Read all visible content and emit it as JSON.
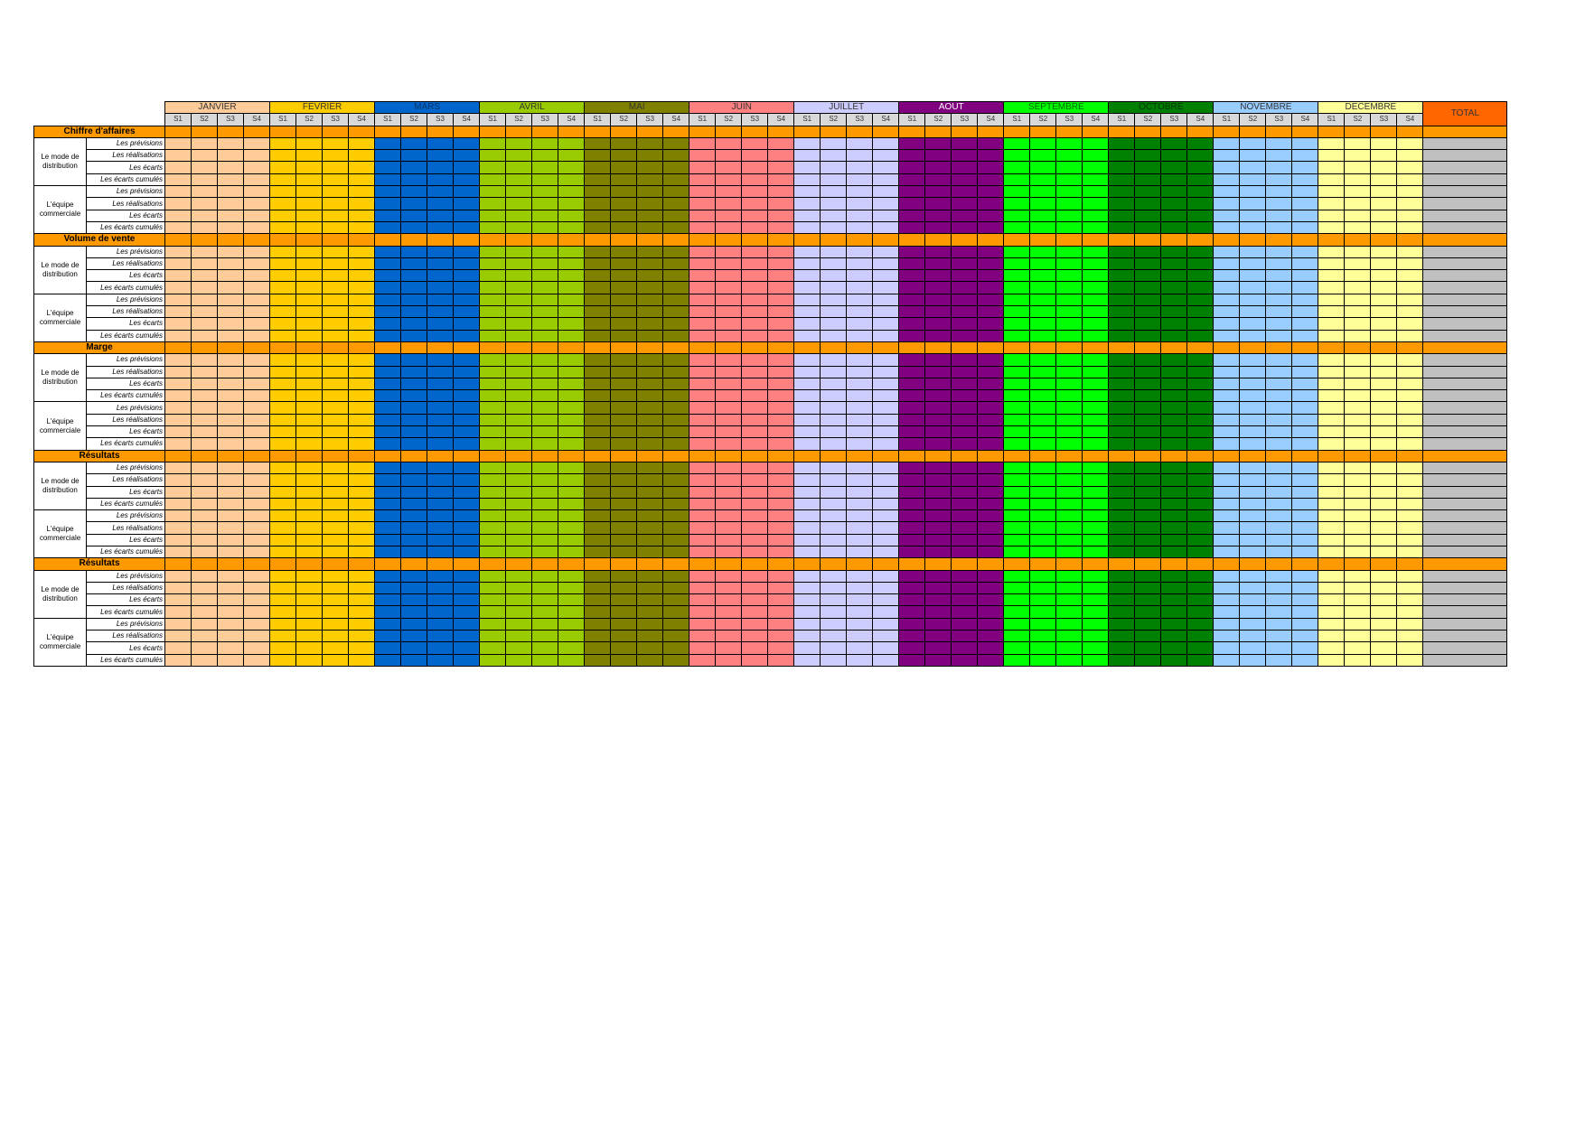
{
  "header": {
    "months": [
      {
        "name": "JANVIER",
        "color": "#ffcc99",
        "text": "#333333"
      },
      {
        "name": "FEVRIER",
        "color": "#ffcc00",
        "text": "#333333"
      },
      {
        "name": "MARS",
        "color": "#0066cc",
        "text": "#003366"
      },
      {
        "name": "AVRIL",
        "color": "#99cc00",
        "text": "#333333"
      },
      {
        "name": "MAI",
        "color": "#808000",
        "text": "#333333"
      },
      {
        "name": "JUIN",
        "color": "#ff8080",
        "text": "#333333"
      },
      {
        "name": "JUILLET",
        "color": "#ccccff",
        "text": "#333333"
      },
      {
        "name": "AOUT",
        "color": "#800080",
        "text": "#ffffff"
      },
      {
        "name": "SEPTEMBRE",
        "color": "#00ff00",
        "text": "#006600"
      },
      {
        "name": "OCTOBRE",
        "color": "#008000",
        "text": "#003300"
      },
      {
        "name": "NOVEMBRE",
        "color": "#99ccff",
        "text": "#333333"
      },
      {
        "name": "DECEMBRE",
        "color": "#ffff99",
        "text": "#333333"
      }
    ],
    "weeks": [
      "S1",
      "S2",
      "S3",
      "S4"
    ],
    "total": {
      "label": "TOTAL",
      "color": "#ff6600",
      "cell_color": "#c0c0c0"
    },
    "section_color": "#ff9900"
  },
  "sections": [
    {
      "title": "Chiffre d'affaires",
      "groups": [
        {
          "label": "Le mode de distribution",
          "rows": [
            "Les prévisions",
            "Les réalisations",
            "Les écarts",
            "Les écarts cumulés"
          ]
        },
        {
          "label": "L'équipe commerciale",
          "rows": [
            "Les prévisions",
            "Les réalisations",
            "Les écarts",
            "Les écarts cumulés"
          ]
        }
      ]
    },
    {
      "title": "Volume de vente",
      "groups": [
        {
          "label": "Le mode de distribution",
          "rows": [
            "Les prévisions",
            "Les réalisations",
            "Les écarts",
            "Les écarts cumulés"
          ]
        },
        {
          "label": "L'équipe commerciale",
          "rows": [
            "Les prévisions",
            "Les réalisations",
            "Les écarts",
            "Les écarts cumulés"
          ]
        }
      ]
    },
    {
      "title": "Marge",
      "groups": [
        {
          "label": "Le mode de distribution",
          "rows": [
            "Les prévisions",
            "Les réalisations",
            "Les écarts",
            "Les écarts cumulés"
          ]
        },
        {
          "label": "L'équipe commerciale",
          "rows": [
            "Les prévisions",
            "Les réalisations",
            "Les écarts",
            "Les écarts cumulés"
          ]
        }
      ]
    },
    {
      "title": "Résultats",
      "groups": [
        {
          "label": "Le mode de distribution",
          "rows": [
            "Les prévisions",
            "Les réalisations",
            "Les écarts",
            "Les écarts cumulés"
          ]
        },
        {
          "label": "L'équipe commerciale",
          "rows": [
            "Les prévisions",
            "Les réalisations",
            "Les écarts",
            "Les écarts cumulés"
          ]
        }
      ]
    },
    {
      "title": "Résultats",
      "groups": [
        {
          "label": "Le mode de distribution",
          "rows": [
            "Les prévisions",
            "Les réalisations",
            "Les écarts",
            "Les écarts cumulés"
          ]
        },
        {
          "label": "L'équipe commerciale",
          "rows": [
            "Les prévisions",
            "Les réalisations",
            "Les écarts",
            "Les écarts cumulés"
          ]
        }
      ]
    }
  ]
}
